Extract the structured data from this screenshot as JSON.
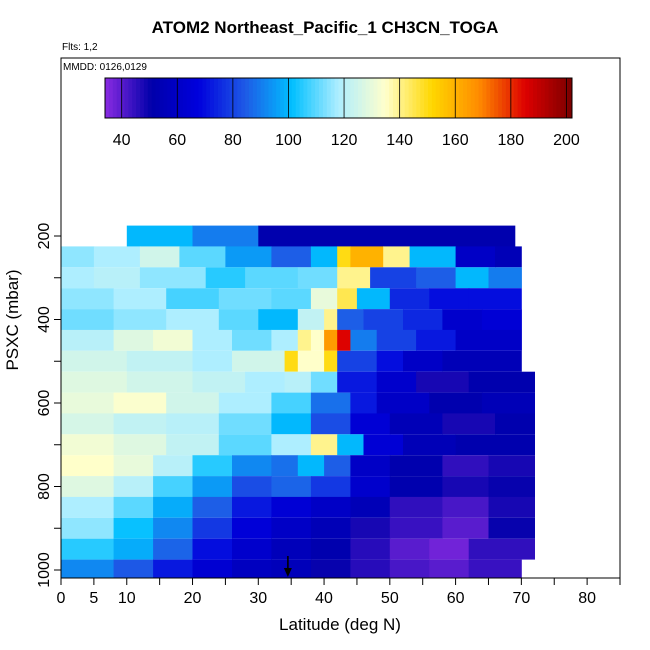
{
  "header": {
    "title": "ATOM2 Northeast_Pacific_1 CH3CN_TOGA",
    "flights": "Flts: 1,2",
    "mmdd": "MMDD: 0126,0129"
  },
  "chart_data": {
    "type": "heatmap",
    "xlabel": "Latitude (deg N)",
    "ylabel": "PSXC (mbar)",
    "xlim": [
      0,
      85
    ],
    "ylim": [
      1000,
      0
    ],
    "x_ticks": [
      0,
      5,
      10,
      20,
      30,
      40,
      50,
      60,
      70,
      80
    ],
    "x_minor_ticks": [
      15,
      25,
      35,
      45,
      55,
      65,
      75,
      85
    ],
    "y_ticks": [
      200,
      400,
      600,
      800,
      1000
    ],
    "y_minor_ticks": [
      300,
      500,
      700,
      900
    ],
    "colorbar": {
      "min": 34,
      "max": 202,
      "ticks": [
        40,
        60,
        80,
        100,
        120,
        140,
        160,
        180,
        200
      ],
      "colors": [
        "#8a2be2",
        "#0000aa",
        "#0000dd",
        "#1e5ae6",
        "#00bfff",
        "#aeeeff",
        "#ffffcc",
        "#ffd700",
        "#ff8c00",
        "#dd0000",
        "#7a0000"
      ]
    },
    "marker": {
      "x": 34.5,
      "y": 1000,
      "symbol": "arrow-down"
    },
    "layers": [
      {
        "p": 200,
        "cells": [
          [
            10,
            20,
            100
          ],
          [
            20,
            30,
            90
          ],
          [
            30,
            69,
            52
          ]
        ]
      },
      {
        "p": 250,
        "cells": [
          [
            0,
            5,
            115
          ],
          [
            5,
            12,
            118
          ],
          [
            12,
            18,
            125
          ],
          [
            18,
            25,
            110
          ],
          [
            25,
            32,
            95
          ],
          [
            32,
            38,
            85
          ],
          [
            38,
            42,
            100
          ],
          [
            42,
            44,
            150
          ],
          [
            44,
            49,
            160
          ],
          [
            49,
            53,
            140
          ],
          [
            53,
            60,
            100
          ],
          [
            60,
            66,
            60
          ],
          [
            66,
            70,
            55
          ]
        ]
      },
      {
        "p": 300,
        "cells": [
          [
            0,
            5,
            118
          ],
          [
            5,
            12,
            120
          ],
          [
            12,
            22,
            115
          ],
          [
            22,
            28,
            105
          ],
          [
            28,
            36,
            110
          ],
          [
            36,
            42,
            112
          ],
          [
            42,
            47,
            140
          ],
          [
            47,
            54,
            80
          ],
          [
            54,
            60,
            85
          ],
          [
            60,
            65,
            100
          ],
          [
            65,
            70,
            90
          ]
        ]
      },
      {
        "p": 350,
        "cells": [
          [
            0,
            8,
            115
          ],
          [
            8,
            16,
            118
          ],
          [
            16,
            24,
            108
          ],
          [
            24,
            32,
            112
          ],
          [
            32,
            38,
            110
          ],
          [
            38,
            42,
            130
          ],
          [
            42,
            45,
            145
          ],
          [
            45,
            50,
            100
          ],
          [
            50,
            56,
            75
          ],
          [
            56,
            62,
            70
          ],
          [
            62,
            70,
            70
          ]
        ]
      },
      {
        "p": 400,
        "cells": [
          [
            0,
            8,
            112
          ],
          [
            8,
            16,
            115
          ],
          [
            16,
            24,
            118
          ],
          [
            24,
            30,
            110
          ],
          [
            30,
            36,
            100
          ],
          [
            36,
            40,
            122
          ],
          [
            40,
            42,
            140
          ],
          [
            42,
            46,
            85
          ],
          [
            46,
            52,
            80
          ],
          [
            52,
            58,
            75
          ],
          [
            58,
            64,
            62
          ],
          [
            64,
            70,
            65
          ]
        ]
      },
      {
        "p": 450,
        "cells": [
          [
            0,
            8,
            120
          ],
          [
            8,
            14,
            128
          ],
          [
            14,
            20,
            132
          ],
          [
            20,
            26,
            118
          ],
          [
            26,
            32,
            112
          ],
          [
            32,
            36,
            118
          ],
          [
            36,
            38,
            140
          ],
          [
            38,
            40,
            135
          ],
          [
            40,
            42,
            165
          ],
          [
            42,
            44,
            185
          ],
          [
            44,
            48,
            90
          ],
          [
            48,
            54,
            80
          ],
          [
            54,
            60,
            72
          ],
          [
            60,
            70,
            60
          ]
        ]
      },
      {
        "p": 500,
        "cells": [
          [
            0,
            10,
            125
          ],
          [
            10,
            20,
            122
          ],
          [
            20,
            26,
            118
          ],
          [
            26,
            34,
            125
          ],
          [
            34,
            36,
            150
          ],
          [
            36,
            40,
            135
          ],
          [
            40,
            42,
            150
          ],
          [
            42,
            48,
            80
          ],
          [
            48,
            52,
            70
          ],
          [
            52,
            58,
            60
          ],
          [
            58,
            70,
            55
          ]
        ]
      },
      {
        "p": 550,
        "cells": [
          [
            0,
            10,
            128
          ],
          [
            10,
            20,
            125
          ],
          [
            20,
            28,
            122
          ],
          [
            28,
            34,
            118
          ],
          [
            34,
            38,
            120
          ],
          [
            38,
            42,
            112
          ],
          [
            42,
            48,
            72
          ],
          [
            48,
            54,
            62
          ],
          [
            54,
            62,
            48
          ],
          [
            62,
            72,
            52
          ]
        ]
      },
      {
        "p": 600,
        "cells": [
          [
            0,
            8,
            130
          ],
          [
            8,
            16,
            134
          ],
          [
            16,
            24,
            125
          ],
          [
            24,
            32,
            118
          ],
          [
            32,
            38,
            108
          ],
          [
            38,
            44,
            88
          ],
          [
            44,
            48,
            72
          ],
          [
            48,
            56,
            60
          ],
          [
            56,
            64,
            52
          ],
          [
            64,
            72,
            55
          ]
        ]
      },
      {
        "p": 650,
        "cells": [
          [
            0,
            8,
            126
          ],
          [
            8,
            16,
            122
          ],
          [
            16,
            24,
            120
          ],
          [
            24,
            32,
            112
          ],
          [
            32,
            38,
            100
          ],
          [
            38,
            44,
            82
          ],
          [
            44,
            50,
            65
          ],
          [
            50,
            58,
            55
          ],
          [
            58,
            66,
            48
          ],
          [
            66,
            72,
            52
          ]
        ]
      },
      {
        "p": 700,
        "cells": [
          [
            0,
            8,
            132
          ],
          [
            8,
            16,
            128
          ],
          [
            16,
            24,
            122
          ],
          [
            24,
            32,
            110
          ],
          [
            32,
            38,
            118
          ],
          [
            38,
            42,
            140
          ],
          [
            42,
            46,
            100
          ],
          [
            46,
            52,
            65
          ],
          [
            52,
            60,
            55
          ],
          [
            60,
            72,
            52
          ]
        ]
      },
      {
        "p": 750,
        "cells": [
          [
            0,
            8,
            135
          ],
          [
            8,
            14,
            130
          ],
          [
            14,
            20,
            120
          ],
          [
            20,
            26,
            105
          ],
          [
            26,
            32,
            92
          ],
          [
            32,
            36,
            88
          ],
          [
            36,
            40,
            100
          ],
          [
            40,
            44,
            85
          ],
          [
            44,
            50,
            60
          ],
          [
            50,
            58,
            52
          ],
          [
            58,
            65,
            45
          ],
          [
            65,
            72,
            48
          ]
        ]
      },
      {
        "p": 800,
        "cells": [
          [
            0,
            8,
            128
          ],
          [
            8,
            14,
            120
          ],
          [
            14,
            20,
            108
          ],
          [
            20,
            26,
            95
          ],
          [
            26,
            32,
            82
          ],
          [
            32,
            38,
            86
          ],
          [
            38,
            44,
            78
          ],
          [
            44,
            50,
            62
          ],
          [
            50,
            58,
            52
          ],
          [
            58,
            65,
            48
          ],
          [
            65,
            72,
            50
          ]
        ]
      },
      {
        "p": 850,
        "cells": [
          [
            0,
            8,
            118
          ],
          [
            8,
            14,
            110
          ],
          [
            14,
            20,
            98
          ],
          [
            20,
            26,
            85
          ],
          [
            26,
            32,
            72
          ],
          [
            32,
            38,
            65
          ],
          [
            38,
            44,
            60
          ],
          [
            44,
            50,
            55
          ],
          [
            50,
            58,
            45
          ],
          [
            58,
            65,
            42
          ],
          [
            65,
            72,
            48
          ]
        ]
      },
      {
        "p": 900,
        "cells": [
          [
            0,
            8,
            115
          ],
          [
            8,
            14,
            102
          ],
          [
            14,
            20,
            92
          ],
          [
            20,
            26,
            78
          ],
          [
            26,
            32,
            66
          ],
          [
            32,
            38,
            60
          ],
          [
            38,
            44,
            55
          ],
          [
            44,
            50,
            48
          ],
          [
            50,
            58,
            44
          ],
          [
            58,
            65,
            40
          ],
          [
            65,
            72,
            50
          ]
        ]
      },
      {
        "p": 950,
        "cells": [
          [
            0,
            8,
            105
          ],
          [
            8,
            14,
            98
          ],
          [
            14,
            20,
            86
          ],
          [
            20,
            26,
            70
          ],
          [
            26,
            32,
            62
          ],
          [
            32,
            38,
            56
          ],
          [
            38,
            44,
            52
          ],
          [
            44,
            50,
            46
          ],
          [
            50,
            56,
            40
          ],
          [
            56,
            62,
            37
          ],
          [
            62,
            72,
            45
          ]
        ]
      },
      {
        "p": 1000,
        "cells": [
          [
            0,
            8,
            92
          ],
          [
            8,
            14,
            84
          ],
          [
            14,
            20,
            72
          ],
          [
            20,
            26,
            64
          ],
          [
            26,
            32,
            58
          ],
          [
            32,
            38,
            56
          ],
          [
            38,
            44,
            50
          ],
          [
            44,
            50,
            46
          ],
          [
            50,
            56,
            42
          ],
          [
            56,
            62,
            40
          ],
          [
            62,
            70,
            44
          ]
        ]
      }
    ]
  }
}
